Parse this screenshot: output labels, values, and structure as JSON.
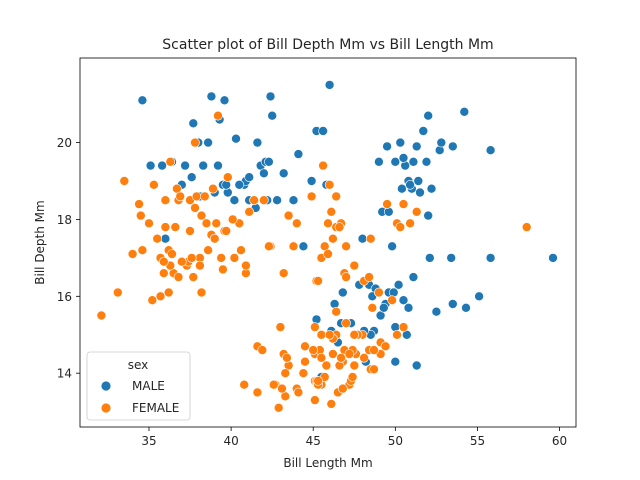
{
  "chart_data": {
    "type": "scatter",
    "title": "Scatter plot of Bill Depth Mm vs Bill Length Mm",
    "xlabel": "Bill Length Mm",
    "ylabel": "Bill Depth Mm",
    "xlim": [
      30.8,
      61.0
    ],
    "ylim": [
      12.6,
      22.2
    ],
    "xticks": [
      35,
      40,
      45,
      50,
      55,
      60
    ],
    "yticks": [
      14,
      16,
      18,
      20
    ],
    "grid": false,
    "legend": {
      "title": "sex",
      "placement": "lower-left"
    },
    "series": [
      {
        "name": "MALE",
        "color": "#1f77b4",
        "points": [
          [
            34.6,
            21.1
          ],
          [
            35.1,
            19.4
          ],
          [
            35.8,
            19.4
          ],
          [
            36.4,
            19.5
          ],
          [
            37.2,
            19.4
          ],
          [
            37.6,
            19.1
          ],
          [
            37.7,
            20.5
          ],
          [
            38.0,
            20.0
          ],
          [
            38.3,
            19.4
          ],
          [
            38.6,
            20.0
          ],
          [
            38.8,
            21.2
          ],
          [
            39.2,
            19.4
          ],
          [
            39.3,
            20.6
          ],
          [
            39.5,
            18.9
          ],
          [
            39.6,
            21.1
          ],
          [
            39.8,
            18.7
          ],
          [
            40.3,
            20.1
          ],
          [
            40.6,
            18.9
          ],
          [
            40.8,
            18.9
          ],
          [
            40.9,
            19.0
          ],
          [
            41.1,
            18.5
          ],
          [
            41.5,
            18.3
          ],
          [
            41.6,
            20.0
          ],
          [
            41.8,
            19.4
          ],
          [
            42.1,
            19.5
          ],
          [
            42.2,
            18.5
          ],
          [
            42.4,
            21.2
          ],
          [
            42.5,
            20.7
          ],
          [
            42.8,
            18.5
          ],
          [
            43.2,
            19.2
          ],
          [
            43.5,
            18.1
          ],
          [
            44.1,
            19.7
          ],
          [
            44.9,
            19.0
          ],
          [
            45.2,
            20.3
          ],
          [
            45.6,
            20.3
          ],
          [
            45.8,
            18.9
          ],
          [
            46.0,
            21.5
          ],
          [
            37.0,
            18.9
          ],
          [
            38.1,
            18.6
          ],
          [
            39.0,
            18.7
          ],
          [
            39.7,
            18.9
          ],
          [
            40.2,
            18.5
          ],
          [
            40.5,
            18.9
          ],
          [
            41.1,
            19.1
          ],
          [
            41.4,
            18.5
          ],
          [
            42.0,
            19.2
          ],
          [
            42.3,
            19.5
          ],
          [
            44.4,
            17.3
          ],
          [
            43.8,
            18.5
          ],
          [
            36.0,
            17.5
          ],
          [
            49.0,
            19.5
          ],
          [
            49.5,
            19.9
          ],
          [
            50.0,
            19.5
          ],
          [
            50.3,
            20.0
          ],
          [
            50.8,
            19.0
          ],
          [
            51.3,
            19.9
          ],
          [
            51.7,
            20.3
          ],
          [
            52.0,
            20.7
          ],
          [
            52.7,
            19.8
          ],
          [
            53.5,
            19.9
          ],
          [
            54.2,
            20.8
          ],
          [
            55.8,
            19.8
          ],
          [
            49.2,
            18.2
          ],
          [
            49.6,
            18.2
          ],
          [
            50.4,
            18.8
          ],
          [
            50.6,
            19.4
          ],
          [
            51.0,
            18.8
          ],
          [
            51.4,
            19.0
          ],
          [
            51.9,
            19.5
          ],
          [
            52.2,
            18.8
          ],
          [
            50.9,
            18.9
          ],
          [
            49.8,
            17.3
          ],
          [
            52.0,
            18.1
          ],
          [
            52.1,
            17.0
          ],
          [
            53.4,
            17.0
          ],
          [
            51.5,
            18.7
          ],
          [
            50.5,
            19.6
          ],
          [
            51.1,
            19.5
          ],
          [
            52.8,
            20.0
          ],
          [
            55.8,
            17.0
          ],
          [
            45.2,
            15.4
          ],
          [
            45.5,
            15.0
          ],
          [
            46.1,
            15.1
          ],
          [
            46.8,
            16.1
          ],
          [
            47.3,
            15.3
          ],
          [
            47.8,
            16.3
          ],
          [
            48.4,
            16.3
          ],
          [
            48.7,
            15.1
          ],
          [
            49.1,
            15.5
          ],
          [
            49.6,
            16.1
          ],
          [
            50.0,
            15.2
          ],
          [
            50.2,
            16.3
          ],
          [
            50.5,
            15.9
          ],
          [
            51.1,
            16.5
          ],
          [
            49.9,
            16.1
          ],
          [
            48.5,
            15.0
          ],
          [
            48.2,
            14.3
          ],
          [
            50.0,
            14.3
          ],
          [
            51.3,
            14.2
          ],
          [
            52.5,
            15.6
          ],
          [
            53.5,
            15.8
          ],
          [
            54.3,
            15.7
          ],
          [
            55.1,
            16.0
          ],
          [
            59.6,
            17.0
          ],
          [
            46.4,
            15.6
          ],
          [
            47.5,
            15.0
          ],
          [
            46.7,
            15.3
          ],
          [
            48.8,
            16.2
          ],
          [
            49.4,
            15.8
          ],
          [
            50.7,
            15.0
          ],
          [
            45.5,
            13.9
          ],
          [
            46.3,
            15.8
          ],
          [
            48.1,
            15.1
          ],
          [
            49.3,
            15.7
          ],
          [
            45.3,
            13.8
          ],
          [
            46.5,
            14.8
          ],
          [
            47.6,
            14.5
          ],
          [
            48.6,
            16.0
          ],
          [
            50.8,
            15.7
          ],
          [
            49.0,
            16.1
          ],
          [
            48.0,
            17.5
          ]
        ]
      },
      {
        "name": "FEMALE",
        "color": "#ff7f0e",
        "points": [
          [
            32.1,
            15.5
          ],
          [
            33.1,
            16.1
          ],
          [
            33.5,
            19.0
          ],
          [
            34.0,
            17.1
          ],
          [
            34.4,
            18.4
          ],
          [
            34.5,
            18.1
          ],
          [
            35.0,
            17.9
          ],
          [
            35.2,
            15.9
          ],
          [
            35.3,
            18.9
          ],
          [
            35.5,
            17.5
          ],
          [
            35.7,
            16.0
          ],
          [
            35.9,
            16.6
          ],
          [
            36.0,
            17.8
          ],
          [
            36.2,
            17.2
          ],
          [
            36.2,
            16.1
          ],
          [
            36.4,
            17.1
          ],
          [
            36.5,
            16.6
          ],
          [
            36.6,
            17.8
          ],
          [
            36.7,
            18.8
          ],
          [
            36.8,
            18.5
          ],
          [
            36.9,
            18.6
          ],
          [
            37.3,
            16.8
          ],
          [
            37.4,
            16.9
          ],
          [
            37.5,
            18.5
          ],
          [
            37.7,
            16.5
          ],
          [
            37.8,
            18.3
          ],
          [
            37.9,
            18.6
          ],
          [
            38.1,
            17.0
          ],
          [
            38.2,
            18.1
          ],
          [
            38.5,
            17.9
          ],
          [
            38.6,
            17.2
          ],
          [
            38.8,
            17.6
          ],
          [
            38.9,
            18.8
          ],
          [
            39.0,
            17.5
          ],
          [
            39.1,
            17.9
          ],
          [
            39.5,
            16.7
          ],
          [
            39.6,
            17.7
          ],
          [
            39.7,
            17.7
          ],
          [
            39.8,
            19.1
          ],
          [
            40.2,
            17.0
          ],
          [
            40.5,
            17.9
          ],
          [
            40.6,
            17.2
          ],
          [
            40.9,
            16.6
          ],
          [
            41.1,
            18.2
          ],
          [
            41.4,
            18.5
          ],
          [
            42.0,
            18.5
          ],
          [
            42.4,
            17.3
          ],
          [
            43.2,
            16.6
          ],
          [
            36.0,
            18.5
          ],
          [
            34.6,
            17.2
          ],
          [
            36.3,
            19.5
          ],
          [
            37.6,
            17.0
          ],
          [
            37.8,
            20.0
          ],
          [
            38.9,
            18.8
          ],
          [
            39.2,
            20.7
          ],
          [
            40.9,
            16.8
          ],
          [
            37.0,
            16.9
          ],
          [
            39.4,
            17.0
          ],
          [
            38.4,
            18.6
          ],
          [
            35.7,
            17.0
          ],
          [
            40.1,
            18.0
          ],
          [
            45.1,
            14.5
          ],
          [
            45.4,
            14.6
          ],
          [
            45.5,
            13.7
          ],
          [
            45.8,
            14.2
          ],
          [
            46.1,
            13.2
          ],
          [
            46.2,
            14.5
          ],
          [
            46.4,
            15.0
          ],
          [
            46.5,
            13.5
          ],
          [
            46.8,
            14.3
          ],
          [
            46.9,
            14.6
          ],
          [
            47.2,
            13.7
          ],
          [
            47.5,
            14.2
          ],
          [
            47.6,
            14.5
          ],
          [
            48.0,
            15.0
          ],
          [
            48.5,
            14.1
          ],
          [
            48.7,
            14.1
          ],
          [
            49.1,
            14.8
          ],
          [
            50.5,
            15.2
          ],
          [
            43.2,
            14.5
          ],
          [
            43.3,
            13.4
          ],
          [
            43.5,
            14.2
          ],
          [
            44.0,
            13.6
          ],
          [
            44.5,
            14.3
          ],
          [
            45.0,
            14.6
          ],
          [
            45.1,
            13.8
          ],
          [
            45.2,
            13.8
          ],
          [
            45.5,
            14.4
          ],
          [
            45.7,
            13.9
          ],
          [
            46.2,
            14.9
          ],
          [
            46.4,
            15.6
          ],
          [
            46.6,
            14.2
          ],
          [
            46.9,
            16.6
          ],
          [
            47.0,
            15.3
          ],
          [
            47.4,
            14.6
          ],
          [
            47.7,
            15.0
          ],
          [
            48.1,
            14.4
          ],
          [
            49.8,
            15.9
          ],
          [
            50.1,
            15.0
          ],
          [
            42.7,
            13.7
          ],
          [
            43.3,
            14.0
          ],
          [
            45.1,
            15.2
          ],
          [
            45.3,
            13.7
          ],
          [
            47.3,
            13.8
          ],
          [
            42.9,
            13.1
          ],
          [
            43.1,
            13.6
          ],
          [
            45.5,
            15.0
          ],
          [
            46.0,
            15.0
          ],
          [
            47.5,
            15.0
          ],
          [
            49.1,
            14.5
          ],
          [
            45.2,
            16.4
          ],
          [
            45.6,
            19.4
          ],
          [
            46.0,
            18.9
          ],
          [
            46.4,
            17.8
          ],
          [
            46.7,
            17.9
          ],
          [
            46.9,
            16.6
          ],
          [
            47.0,
            17.3
          ],
          [
            47.5,
            16.8
          ],
          [
            48.1,
            16.4
          ],
          [
            49.0,
            16.1
          ],
          [
            49.5,
            18.4
          ],
          [
            50.1,
            17.9
          ],
          [
            50.3,
            17.8
          ],
          [
            50.9,
            17.9
          ],
          [
            51.3,
            18.2
          ],
          [
            58.0,
            17.8
          ],
          [
            45.7,
            17.3
          ],
          [
            46.1,
            18.2
          ],
          [
            45.5,
            17.0
          ],
          [
            45.9,
            17.1
          ],
          [
            46.4,
            18.6
          ],
          [
            47.0,
            16.5
          ],
          [
            48.5,
            17.5
          ],
          [
            50.5,
            18.4
          ],
          [
            45.3,
            16.4
          ],
          [
            46.2,
            17.5
          ],
          [
            43.5,
            18.1
          ],
          [
            43.8,
            17.3
          ],
          [
            41.6,
            14.7
          ],
          [
            42.3,
            17.3
          ],
          [
            44.0,
            17.9
          ],
          [
            44.9,
            18.6
          ],
          [
            40.8,
            13.7
          ],
          [
            41.9,
            14.6
          ],
          [
            44.5,
            14.7
          ],
          [
            45.1,
            13.3
          ],
          [
            46.8,
            13.6
          ],
          [
            47.4,
            13.9
          ],
          [
            48.4,
            14.6
          ],
          [
            48.7,
            14.6
          ],
          [
            43.4,
            14.4
          ],
          [
            44.1,
            13.5
          ],
          [
            45.3,
            13.8
          ],
          [
            46.7,
            14.4
          ],
          [
            41.6,
            13.5
          ],
          [
            43.0,
            15.2
          ],
          [
            42.6,
            13.7
          ],
          [
            44.4,
            14.0
          ],
          [
            45.9,
            17.9
          ],
          [
            46.6,
            17.8
          ],
          [
            47.2,
            14.5
          ],
          [
            48.4,
            16.5
          ],
          [
            49.4,
            14.7
          ],
          [
            48.6,
            15.7
          ],
          [
            38.1,
            16.8
          ],
          [
            37.5,
            17.7
          ],
          [
            36.8,
            16.5
          ],
          [
            38.2,
            16.1
          ],
          [
            36.3,
            16.8
          ],
          [
            35.9,
            16.9
          ]
        ]
      }
    ]
  }
}
